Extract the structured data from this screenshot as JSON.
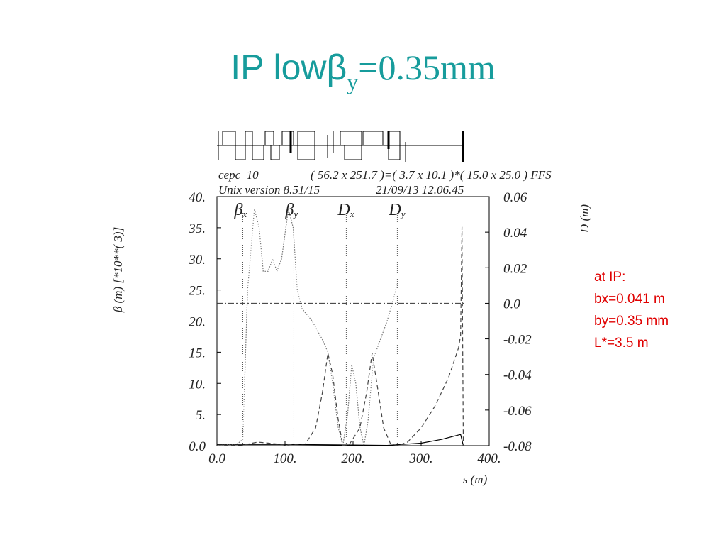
{
  "chart_data": {
    "type": "line",
    "title": {
      "prefix": "IP low",
      "symbol": "β",
      "subscript": "y",
      "suffix": "=0.35mm"
    },
    "header": [
      "cepc_10",
      "(  56.2 x 251.7 )=(  3.7 x 10.1 )*( 15.0 x 25.0 ) FFS",
      "Unix version 8.51/15",
      "21/09/13  12.06.45"
    ],
    "ylabel": "β  (m)     [*10**(  3)]",
    "y2label": "D  (m)",
    "xlabel": "s (m)",
    "xlim": [
      0,
      400
    ],
    "xticks": [
      {
        "value": 0,
        "label": "0.0"
      },
      {
        "value": 100,
        "label": "100."
      },
      {
        "value": 200,
        "label": "200."
      },
      {
        "value": 300,
        "label": "300."
      },
      {
        "value": 400,
        "label": "400."
      }
    ],
    "ylim": [
      0,
      40
    ],
    "yticks": [
      {
        "value": 0,
        "label": "0.0"
      },
      {
        "value": 5,
        "label": "5."
      },
      {
        "value": 10,
        "label": "10."
      },
      {
        "value": 15,
        "label": "15."
      },
      {
        "value": 20,
        "label": "20."
      },
      {
        "value": 25,
        "label": "25."
      },
      {
        "value": 30,
        "label": "30."
      },
      {
        "value": 35,
        "label": "35."
      },
      {
        "value": 40,
        "label": "40."
      }
    ],
    "y2lim": [
      -0.08,
      0.06
    ],
    "y2ticks": [
      -0.08,
      -0.06,
      -0.04,
      -0.02,
      {
        "value": 0,
        "label": "0.0"
      },
      0.02,
      0.04,
      0.06
    ],
    "markers": [
      {
        "symbol": "β",
        "sub": "x",
        "s": 38
      },
      {
        "symbol": "β",
        "sub": "y",
        "s": 113
      },
      {
        "symbol": "D",
        "sub": "x",
        "s": 190
      },
      {
        "symbol": "D",
        "sub": "y",
        "s": 265
      }
    ],
    "series": [
      {
        "style": "solid",
        "color": "#000000",
        "x": [
          0,
          100,
          200,
          250,
          300,
          330,
          358,
          362
        ],
        "values": [
          0.2,
          0.2,
          0.1,
          0.05,
          0.4,
          1,
          1.8,
          0
        ]
      },
      {
        "style": "dotted",
        "color": "#777777",
        "x": [
          0,
          30,
          38,
          45,
          55,
          62,
          68,
          75,
          82,
          88,
          95,
          105,
          112,
          118,
          125,
          140,
          155,
          163,
          170,
          178,
          185,
          192,
          198,
          204,
          210,
          216,
          222,
          230,
          240,
          250,
          258,
          265
        ],
        "values": [
          0,
          0.3,
          1,
          25,
          38,
          35,
          28,
          28,
          30,
          28,
          30,
          38,
          35,
          25,
          22,
          20,
          17,
          15,
          10,
          3,
          0,
          5,
          13,
          10,
          3,
          0,
          4,
          14,
          17,
          20,
          23,
          26
        ]
      },
      {
        "style": "dashed",
        "color": "#444444",
        "axis": "y2",
        "x": [
          0,
          40,
          60,
          100,
          130,
          145,
          155,
          163,
          170,
          178,
          185,
          195,
          210,
          220,
          228,
          235,
          245,
          255,
          265,
          280,
          300,
          320,
          340,
          355,
          358,
          360,
          361,
          362
        ],
        "values": [
          -0.08,
          -0.0795,
          -0.078,
          -0.0795,
          -0.079,
          -0.07,
          -0.05,
          -0.028,
          -0.04,
          -0.065,
          -0.08,
          -0.079,
          -0.07,
          -0.05,
          -0.028,
          -0.045,
          -0.07,
          -0.079,
          -0.08,
          -0.078,
          -0.07,
          -0.058,
          -0.042,
          -0.025,
          -0.018,
          0.043,
          -0.02,
          -0.08
        ]
      }
    ],
    "annotations": [
      "at IP:",
      "bx=0.041 m",
      "by=0.35 mm",
      "L*=3.5 m"
    ]
  }
}
